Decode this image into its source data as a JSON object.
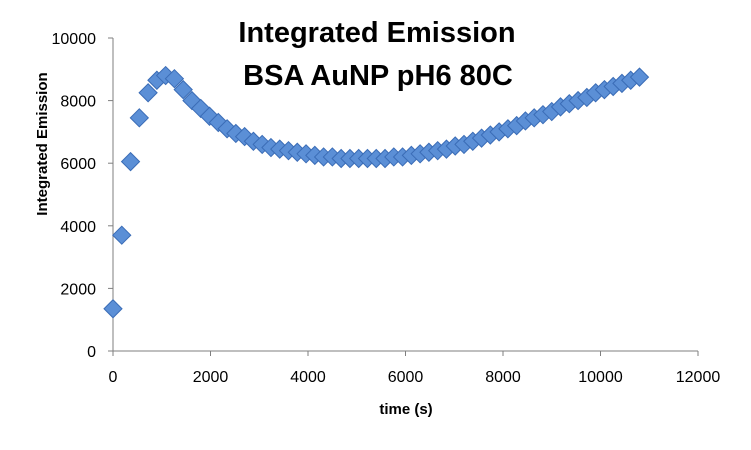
{
  "chart_data": {
    "type": "scatter",
    "title_lines": [
      "Integrated Emission",
      "BSA AuNP pH6 80C"
    ],
    "xlabel": "time (s)",
    "ylabel": "Integrated Emission",
    "xlim": [
      0,
      12000
    ],
    "ylim": [
      0,
      10000
    ],
    "x_ticks": [
      0,
      2000,
      4000,
      6000,
      8000,
      10000,
      12000
    ],
    "y_ticks": [
      0,
      2000,
      4000,
      6000,
      8000,
      10000
    ],
    "grid": false,
    "legend": "none",
    "marker": "diamond",
    "marker_color": "#5b8fd6",
    "series": [
      {
        "x": [
          0,
          180,
          360,
          540,
          720,
          900,
          1080,
          1260,
          1440,
          1620,
          1800,
          1980,
          2160,
          2340,
          2520,
          2700,
          2880,
          3060,
          3240,
          3420,
          3600,
          3780,
          3960,
          4140,
          4320,
          4500,
          4680,
          4860,
          5040,
          5220,
          5400,
          5580,
          5760,
          5940,
          6120,
          6300,
          6480,
          6660,
          6840,
          7020,
          7200,
          7380,
          7560,
          7740,
          7920,
          8100,
          8280,
          8460,
          8640,
          8820,
          9000,
          9180,
          9360,
          9540,
          9720,
          9900,
          10080,
          10260,
          10440,
          10620,
          10800
        ],
        "y": [
          1350,
          3700,
          6050,
          7450,
          8250,
          8650,
          8800,
          8700,
          8350,
          8000,
          7750,
          7500,
          7300,
          7100,
          6950,
          6850,
          6700,
          6600,
          6500,
          6450,
          6400,
          6350,
          6300,
          6250,
          6200,
          6200,
          6150,
          6150,
          6150,
          6150,
          6150,
          6150,
          6200,
          6200,
          6250,
          6300,
          6350,
          6400,
          6450,
          6550,
          6600,
          6700,
          6800,
          6900,
          7000,
          7100,
          7200,
          7350,
          7450,
          7550,
          7650,
          7800,
          7900,
          8000,
          8100,
          8250,
          8350,
          8450,
          8550,
          8650,
          8750
        ]
      }
    ]
  }
}
